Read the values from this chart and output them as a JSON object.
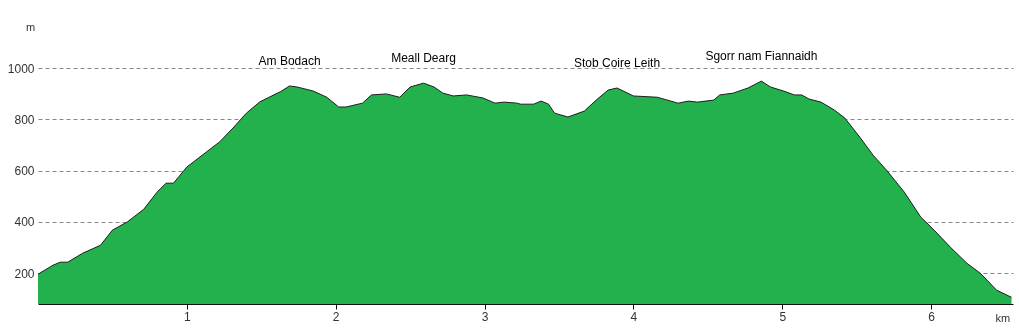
{
  "chart_data": {
    "type": "area",
    "xlabel": "km",
    "ylabel": "m",
    "x": [
      0.0,
      0.1,
      0.15,
      0.2,
      0.3,
      0.42,
      0.5,
      0.6,
      0.71,
      0.8,
      0.86,
      0.91,
      1.0,
      1.13,
      1.22,
      1.31,
      1.4,
      1.49,
      1.63,
      1.69,
      1.74,
      1.85,
      1.94,
      2.02,
      2.07,
      2.18,
      2.24,
      2.34,
      2.43,
      2.5,
      2.59,
      2.66,
      2.72,
      2.79,
      2.88,
      2.99,
      3.07,
      3.13,
      3.22,
      3.24,
      3.33,
      3.38,
      3.43,
      3.47,
      3.56,
      3.67,
      3.75,
      3.83,
      3.89,
      4.0,
      4.16,
      4.3,
      4.37,
      4.43,
      4.54,
      4.58,
      4.67,
      4.77,
      4.86,
      4.92,
      5.01,
      5.08,
      5.13,
      5.18,
      5.26,
      5.35,
      5.42,
      5.52,
      5.61,
      5.7,
      5.82,
      5.93,
      6.02,
      6.13,
      6.24,
      6.33,
      6.44,
      6.54
    ],
    "series": [
      {
        "color": "#23b14d",
        "values": [
          196,
          231,
          243,
          243,
          278,
          309,
          368,
          400,
          449,
          516,
          551,
          551,
          614,
          672,
          712,
          766,
          824,
          868,
          908,
          930,
          926,
          910,
          886,
          848,
          848,
          863,
          895,
          899,
          886,
          926,
          941,
          926,
          902,
          891,
          895,
          883,
          863,
          867,
          863,
          859,
          859,
          871,
          859,
          824,
          809,
          832,
          875,
          914,
          922,
          891,
          886,
          863,
          871,
          867,
          875,
          895,
          902,
          922,
          949,
          926,
          910,
          895,
          895,
          879,
          867,
          836,
          805,
          731,
          660,
          602,
          516,
          419,
          368,
          301,
          239,
          200,
          134,
          106
        ]
      }
    ],
    "xlim": [
      0,
      6.55
    ],
    "ylim": [
      80,
      1000
    ],
    "xticks": [
      1,
      2,
      3,
      4,
      5,
      6
    ],
    "yticks": [
      200,
      400,
      600,
      800,
      1000
    ],
    "grid": "y",
    "annotations": [
      {
        "text": "Am Bodach",
        "x": 1.69,
        "y": 930
      },
      {
        "text": "Meall Dearg",
        "x": 2.59,
        "y": 941
      },
      {
        "text": "Stob Coire Leith",
        "x": 3.89,
        "y": 922
      },
      {
        "text": "Sgorr nam Fiannaidh",
        "x": 4.86,
        "y": 949
      }
    ]
  }
}
